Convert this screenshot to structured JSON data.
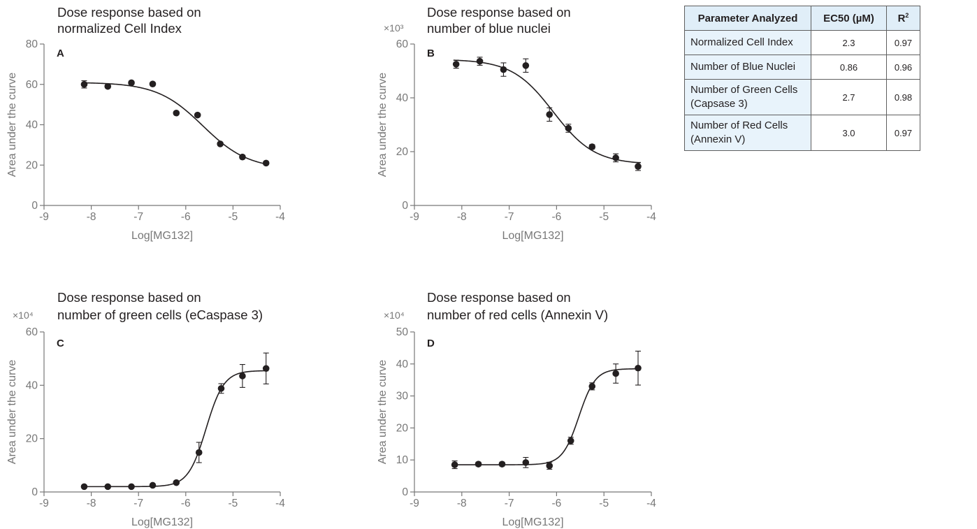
{
  "chart_data": [
    {
      "panel": "A",
      "type": "scatter",
      "title": "Dose response based on normalized Cell Index",
      "title_lines": [
        "Dose response based on",
        "normalized Cell Index"
      ],
      "xlabel": "Log[MG132]",
      "ylabel": "Area under the curve",
      "y_multiplier": "",
      "xlim": [
        -9,
        -4
      ],
      "ylim": [
        0,
        80
      ],
      "xticks": [
        -9,
        -8,
        -7,
        -6,
        -5,
        -4
      ],
      "yticks": [
        0,
        20,
        40,
        60,
        80
      ],
      "x": [
        -8.15,
        -7.65,
        -7.15,
        -6.7,
        -6.2,
        -5.75,
        -5.27,
        -4.8,
        -4.3
      ],
      "y": [
        60,
        59,
        60.8,
        60.2,
        45.8,
        44.8,
        30.5,
        24,
        21
      ],
      "err": [
        1.8,
        0.8,
        0.8,
        0.8,
        0.8,
        0.8,
        0.8,
        0.8,
        0.8
      ],
      "fit": {
        "model": "four-parameter logistic",
        "top": 61,
        "bottom": 18,
        "log_ec50": -5.64,
        "hill": -0.9
      }
    },
    {
      "panel": "B",
      "type": "scatter",
      "title": "Dose response based on number of blue nuclei",
      "title_lines": [
        "Dose response based on",
        "number of blue nuclei"
      ],
      "xlabel": "Log[MG132]",
      "ylabel": "Area under the curve",
      "y_multiplier": "×10³",
      "xlim": [
        -9,
        -4
      ],
      "ylim": [
        0,
        60
      ],
      "xticks": [
        -9,
        -8,
        -7,
        -6,
        -5,
        -4
      ],
      "yticks": [
        0,
        20,
        40,
        60
      ],
      "x": [
        -8.12,
        -7.62,
        -7.12,
        -6.65,
        -6.15,
        -5.75,
        -5.25,
        -4.75,
        -4.28
      ],
      "y": [
        52.5,
        53.6,
        50.5,
        52,
        33.8,
        28.7,
        21.8,
        17.7,
        14.5
      ],
      "err": [
        1.5,
        1.5,
        2.5,
        2.5,
        2.5,
        1.5,
        0.8,
        1.5,
        1.5
      ],
      "fit": {
        "model": "four-parameter logistic",
        "top": 54.3,
        "bottom": 15.3,
        "log_ec50": -6.07,
        "hill": -1.0
      }
    },
    {
      "panel": "C",
      "type": "scatter",
      "title": "Dose response based on number of green cells (eCaspase 3)",
      "title_lines": [
        "Dose response based on",
        "number of green cells (eCaspase 3)"
      ],
      "xlabel": "Log[MG132]",
      "ylabel": "Area under the curve",
      "y_multiplier": "×10⁴",
      "xlim": [
        -9,
        -4
      ],
      "ylim": [
        0,
        60
      ],
      "xticks": [
        -9,
        -8,
        -7,
        -6,
        -5,
        -4
      ],
      "yticks": [
        0,
        20,
        40,
        60
      ],
      "x": [
        -8.15,
        -7.65,
        -7.15,
        -6.7,
        -6.2,
        -5.72,
        -5.25,
        -4.8,
        -4.3
      ],
      "y": [
        2,
        2,
        2,
        2.5,
        3.5,
        14.8,
        38.8,
        43.5,
        46.3
      ],
      "err": [
        0,
        0,
        0,
        0,
        0.5,
        3.8,
        1.8,
        4.3,
        5.8
      ],
      "fit": {
        "model": "four-parameter logistic",
        "top": 45.5,
        "bottom": 2,
        "log_ec50": -5.57,
        "hill": 2.3
      }
    },
    {
      "panel": "D",
      "type": "scatter",
      "title": "Dose response based on number of red cells (Annexin V)",
      "title_lines": [
        "Dose response based on",
        "number of red cells (Annexin V)"
      ],
      "xlabel": "Log[MG132]",
      "ylabel": "Area under the curve",
      "y_multiplier": "×10⁴",
      "xlim": [
        -9,
        -4
      ],
      "ylim": [
        0,
        50
      ],
      "xticks": [
        -9,
        -8,
        -7,
        -6,
        -5,
        -4
      ],
      "yticks": [
        0,
        10,
        20,
        30,
        40,
        50
      ],
      "x": [
        -8.15,
        -7.65,
        -7.15,
        -6.65,
        -6.15,
        -5.7,
        -5.25,
        -4.75,
        -4.28
      ],
      "y": [
        8.5,
        8.7,
        8.7,
        9.2,
        8.2,
        16,
        33,
        37,
        38.7
      ],
      "err": [
        1.2,
        0.6,
        0.6,
        1.6,
        1.1,
        1.1,
        1.1,
        3,
        5.3
      ],
      "fit": {
        "model": "four-parameter logistic",
        "top": 38.5,
        "bottom": 8.5,
        "log_ec50": -5.53,
        "hill": 2.5
      }
    }
  ],
  "table": {
    "headers": [
      "Parameter Analyzed",
      "EC50 (µM)",
      "R"
    ],
    "header_superscript": "2",
    "rows": [
      {
        "lines": [
          "Normalized Cell Index"
        ],
        "ec50": "2.3",
        "r2": "0.97"
      },
      {
        "lines": [
          "Number of Blue Nuclei"
        ],
        "ec50": "0.86",
        "r2": "0.96"
      },
      {
        "lines": [
          "Number of Green Cells",
          "(Capsase 3)"
        ],
        "ec50": "2.7",
        "r2": "0.98"
      },
      {
        "lines": [
          "Number of Red Cells",
          "(Annexin V)"
        ],
        "ec50": "3.0",
        "r2": "0.97"
      }
    ]
  },
  "colors": {
    "marker": "#231f20",
    "axis": "#777777",
    "header_fill": "#e0eef8",
    "cell_fill": "#e8f3fb"
  }
}
